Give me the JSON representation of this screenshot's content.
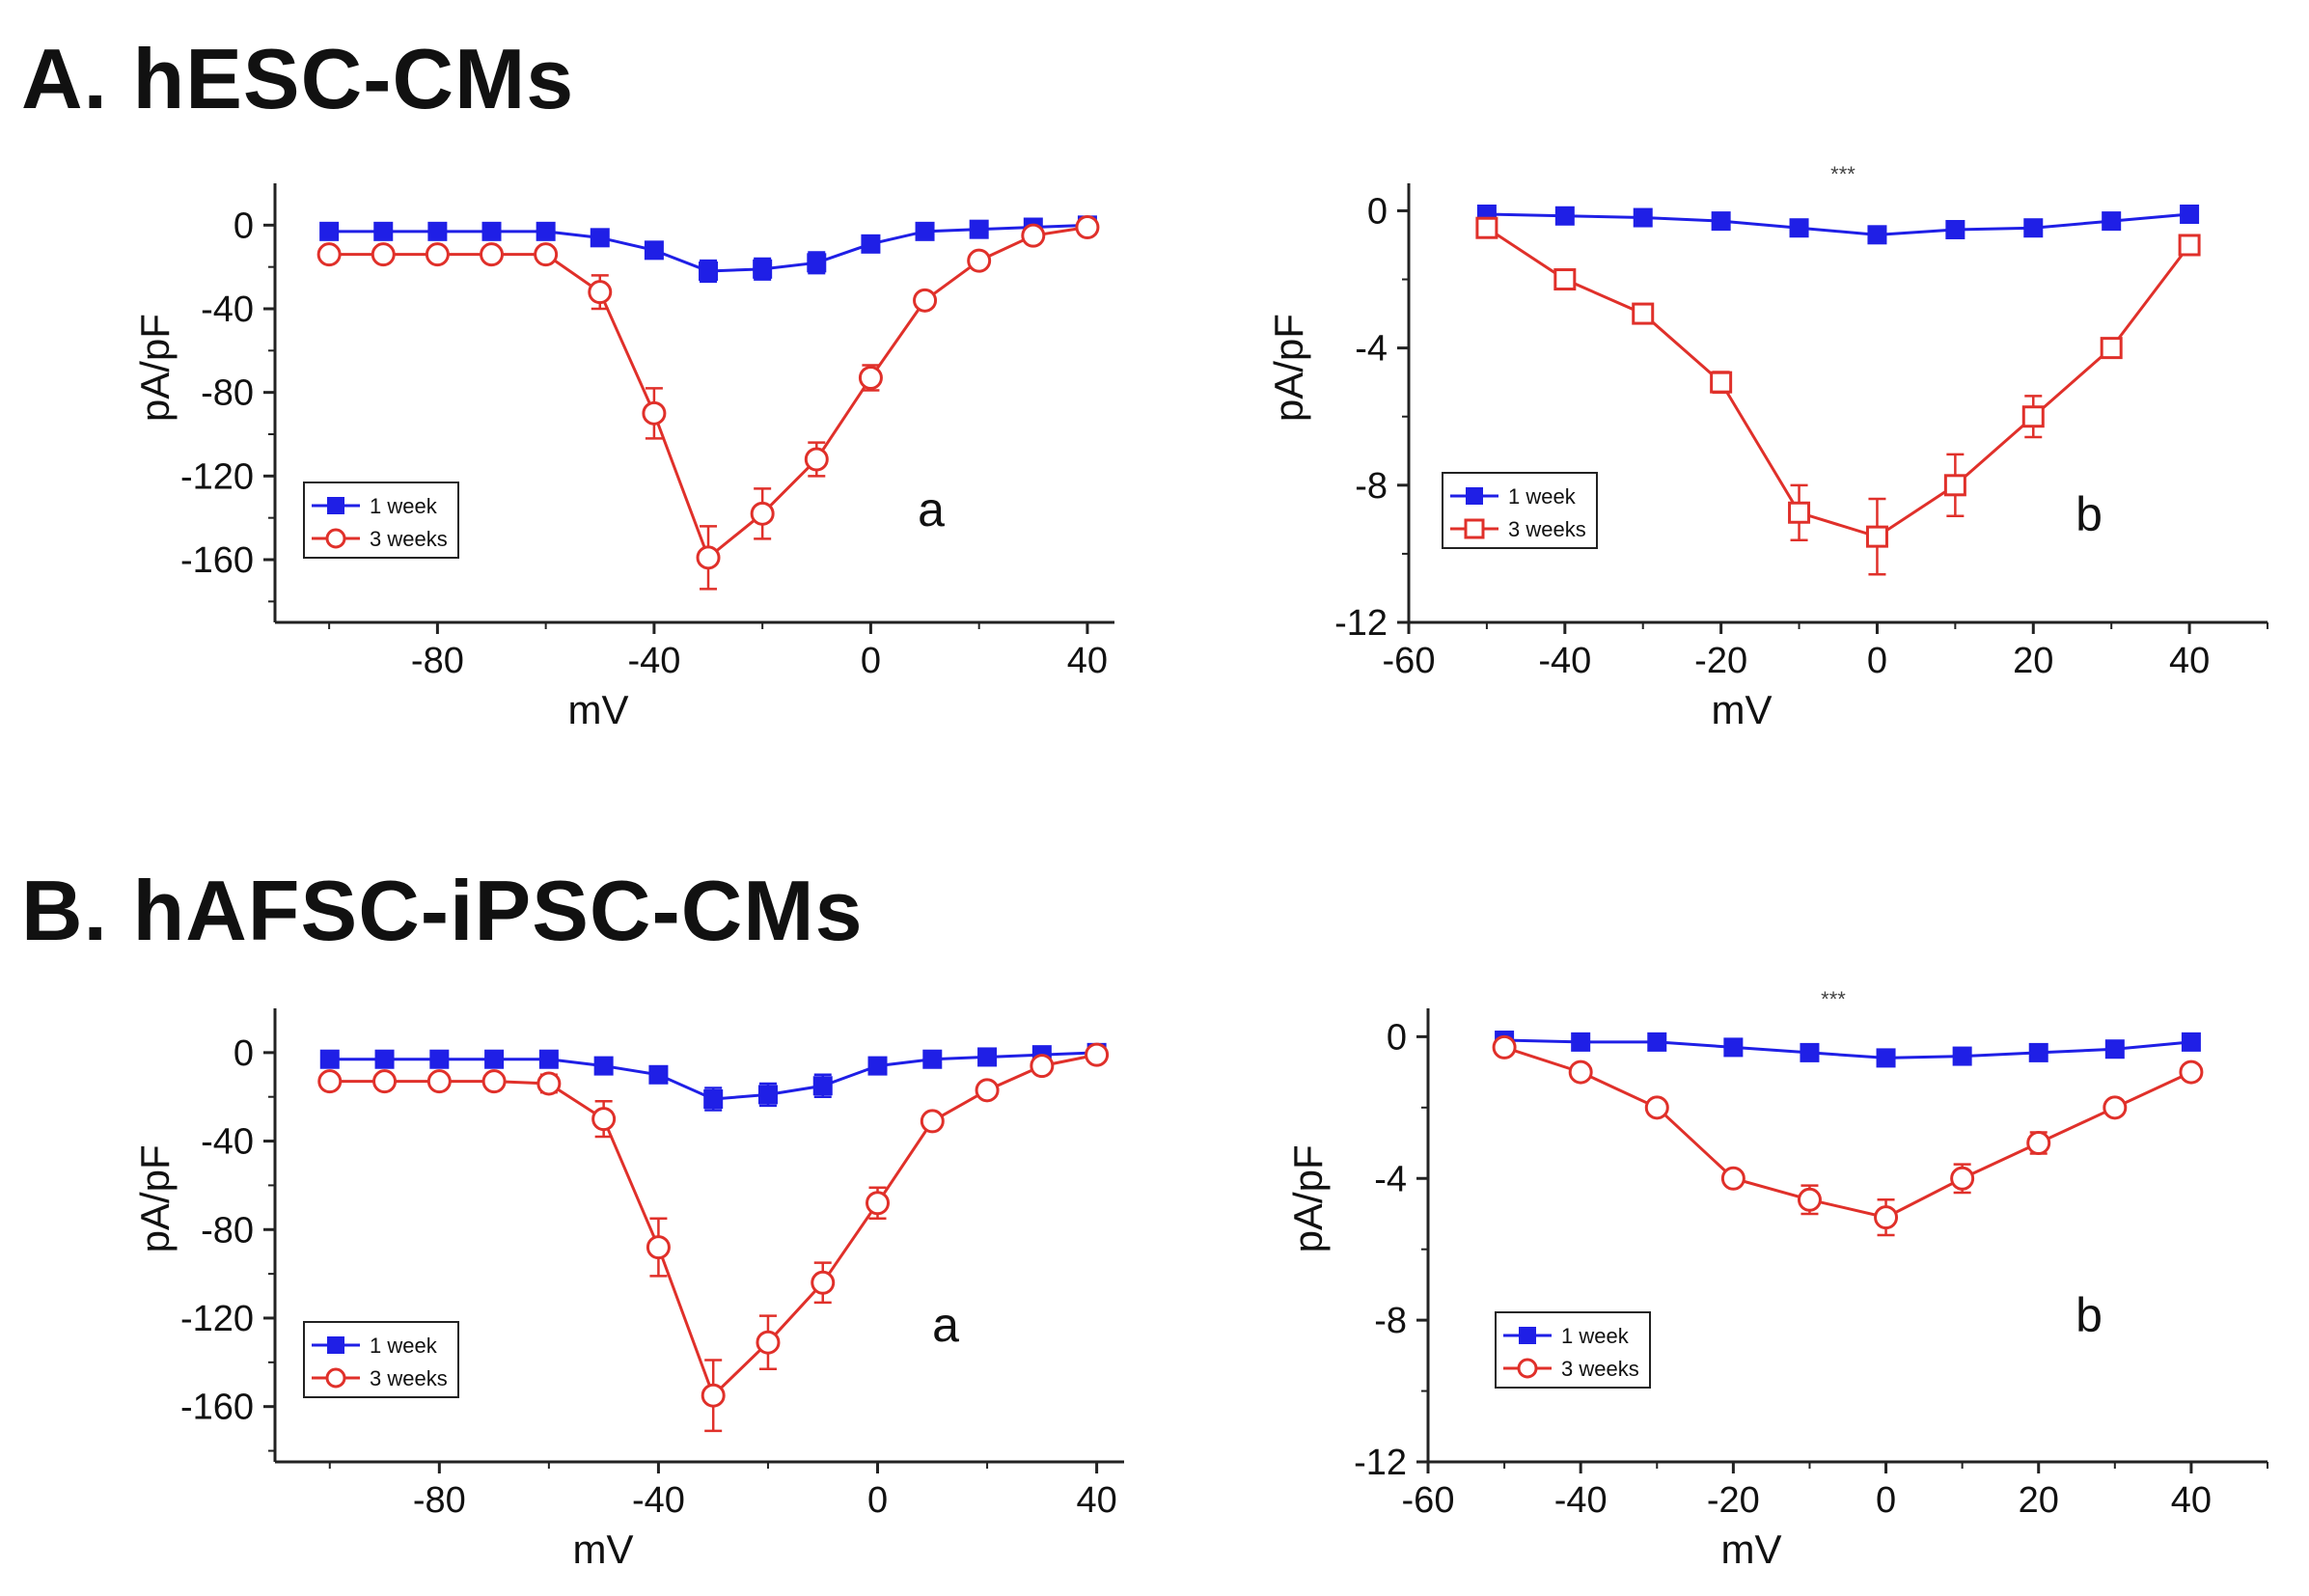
{
  "sections": {
    "a": {
      "title": "A. hESC-CMs"
    },
    "b": {
      "title": "B. hAFSC-iPSC-CMs"
    }
  },
  "colors": {
    "series1": "#1f1fe6",
    "series2": "#e0302a",
    "axis": "#222222"
  },
  "chart_data": [
    {
      "type": "line",
      "panel_letter": "a",
      "xlabel": "mV",
      "ylabel": "pA/pF",
      "xlim": [
        -110,
        45
      ],
      "ylim": [
        -190,
        20
      ],
      "xticks": [
        -80,
        -40,
        0,
        40
      ],
      "yticks": [
        0,
        -40,
        -80,
        -120,
        -160
      ],
      "xtick_labels": [
        "-80",
        "-40",
        "0",
        "40"
      ],
      "ytick_labels": [
        "0",
        "-40",
        "-80",
        "-120",
        "-160"
      ],
      "legend_position": "lower-left",
      "series": [
        {
          "name": "1 week",
          "marker": "filled-square",
          "x": [
            -100,
            -90,
            -80,
            -70,
            -60,
            -50,
            -40,
            -30,
            -20,
            -10,
            0,
            10,
            20,
            30,
            40
          ],
          "y": [
            -3,
            -3,
            -3,
            -3,
            -3,
            -6,
            -12,
            -22,
            -21,
            -18,
            -9,
            -3,
            -2,
            -1,
            0
          ],
          "err": [
            0,
            0,
            0,
            0,
            0,
            0,
            0,
            5,
            5,
            5,
            3,
            0,
            0,
            0,
            0
          ]
        },
        {
          "name": "3 weeks",
          "marker": "open-circle",
          "x": [
            -100,
            -90,
            -80,
            -70,
            -60,
            -50,
            -40,
            -30,
            -20,
            -10,
            0,
            10,
            20,
            30,
            40
          ],
          "y": [
            -14,
            -14,
            -14,
            -14,
            -14,
            -32,
            -90,
            -159,
            -138,
            -112,
            -73,
            -36,
            -17,
            -5,
            -1
          ],
          "err": [
            0,
            0,
            0,
            0,
            0,
            8,
            12,
            15,
            12,
            8,
            6,
            0,
            0,
            0,
            0
          ]
        }
      ]
    },
    {
      "type": "line",
      "panel_letter": "b",
      "top_mark": "***",
      "xlabel": "mV",
      "ylabel": "pA/pF",
      "xlim": [
        -60,
        50
      ],
      "ylim": [
        -12,
        0.8
      ],
      "xticks": [
        -60,
        -40,
        -20,
        0,
        20,
        40
      ],
      "yticks": [
        0,
        -4,
        -8,
        -12
      ],
      "xtick_labels": [
        "-60",
        "-40",
        "-20",
        "0",
        "20",
        "40"
      ],
      "ytick_labels": [
        "0",
        "-4",
        "-8",
        "-12"
      ],
      "legend_position": "lower-left",
      "series": [
        {
          "name": "1 week",
          "marker": "filled-square",
          "x": [
            -50,
            -40,
            -30,
            -20,
            -10,
            0,
            10,
            20,
            30,
            40
          ],
          "y": [
            -0.1,
            -0.15,
            -0.2,
            -0.3,
            -0.5,
            -0.7,
            -0.55,
            -0.5,
            -0.3,
            -0.1
          ],
          "err": [
            0,
            0,
            0,
            0,
            0,
            0,
            0,
            0,
            0,
            0
          ]
        },
        {
          "name": "3 weeks",
          "marker": "open-square",
          "x": [
            -50,
            -40,
            -30,
            -20,
            -10,
            0,
            10,
            20,
            30,
            40
          ],
          "y": [
            -0.5,
            -2,
            -3,
            -5,
            -8.8,
            -9.5,
            -8,
            -6,
            -4,
            -1
          ],
          "err": [
            0,
            0,
            0,
            0.3,
            0.8,
            1.1,
            0.9,
            0.6,
            0,
            0
          ]
        }
      ]
    },
    {
      "type": "line",
      "panel_letter": "a",
      "xlabel": "mV",
      "ylabel": "pA/pF",
      "xlim": [
        -110,
        45
      ],
      "ylim": [
        -185,
        20
      ],
      "xticks": [
        -80,
        -40,
        0,
        40
      ],
      "yticks": [
        0,
        -40,
        -80,
        -120,
        -160
      ],
      "xtick_labels": [
        "-80",
        "-40",
        "0",
        "40"
      ],
      "ytick_labels": [
        "0",
        "-40",
        "-80",
        "-120",
        "-160"
      ],
      "legend_position": "lower-left",
      "series": [
        {
          "name": "1 week",
          "marker": "filled-square",
          "x": [
            -100,
            -90,
            -80,
            -70,
            -60,
            -50,
            -40,
            -30,
            -20,
            -10,
            0,
            10,
            20,
            30,
            40
          ],
          "y": [
            -3,
            -3,
            -3,
            -3,
            -3,
            -6,
            -10,
            -21,
            -19,
            -15,
            -6,
            -3,
            -2,
            -1,
            0
          ],
          "err": [
            0,
            0,
            0,
            0,
            0,
            0,
            0,
            5,
            5,
            5,
            3,
            0,
            0,
            0,
            0
          ]
        },
        {
          "name": "3 weeks",
          "marker": "open-circle",
          "x": [
            -100,
            -90,
            -80,
            -70,
            -60,
            -50,
            -40,
            -30,
            -20,
            -10,
            0,
            10,
            20,
            30,
            40
          ],
          "y": [
            -13,
            -13,
            -13,
            -13,
            -14,
            -30,
            -88,
            -155,
            -131,
            -104,
            -68,
            -31,
            -17,
            -6,
            -1
          ],
          "err": [
            0,
            0,
            0,
            0,
            4,
            8,
            13,
            16,
            12,
            9,
            7,
            0,
            0,
            0,
            0
          ]
        }
      ]
    },
    {
      "type": "line",
      "panel_letter": "b",
      "top_mark": "***",
      "xlabel": "mV",
      "ylabel": "pA/pF",
      "xlim": [
        -60,
        50
      ],
      "ylim": [
        -12,
        0.8
      ],
      "xticks": [
        -60,
        -40,
        -20,
        0,
        20,
        40
      ],
      "yticks": [
        0,
        -4,
        -8,
        -12
      ],
      "xtick_labels": [
        "-60",
        "-40",
        "-20",
        "0",
        "20",
        "40"
      ],
      "ytick_labels": [
        "0",
        "-4",
        "-8",
        "-12"
      ],
      "legend_position": "lower-left",
      "series": [
        {
          "name": "1 week",
          "marker": "filled-square",
          "x": [
            -50,
            -40,
            -30,
            -20,
            -10,
            0,
            10,
            20,
            30,
            40
          ],
          "y": [
            -0.1,
            -0.15,
            -0.15,
            -0.3,
            -0.45,
            -0.6,
            -0.55,
            -0.45,
            -0.35,
            -0.15
          ],
          "err": [
            0,
            0,
            0,
            0,
            0,
            0,
            0,
            0,
            0,
            0
          ]
        },
        {
          "name": "3 weeks",
          "marker": "open-circle",
          "x": [
            -50,
            -40,
            -30,
            -20,
            -10,
            0,
            10,
            20,
            30,
            40
          ],
          "y": [
            -0.3,
            -1,
            -2,
            -4,
            -4.6,
            -5.1,
            -4,
            -3,
            -2,
            -1
          ],
          "err": [
            0,
            0,
            0,
            0,
            0.4,
            0.5,
            0.4,
            0.3,
            0,
            0
          ]
        }
      ]
    }
  ]
}
